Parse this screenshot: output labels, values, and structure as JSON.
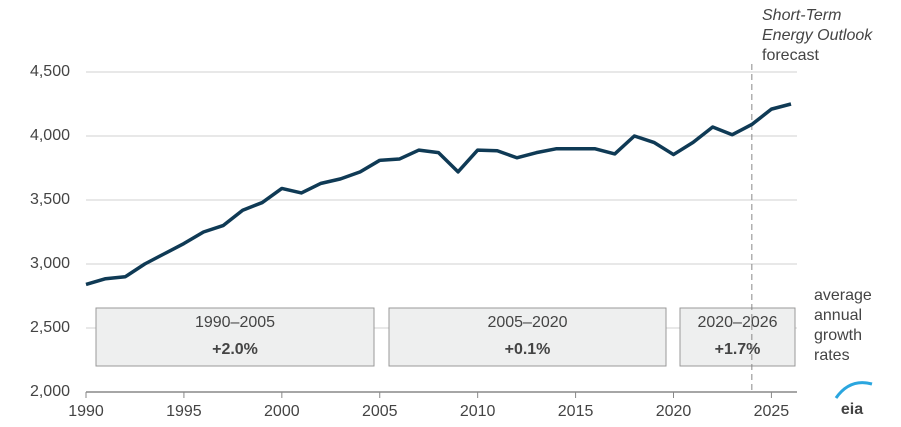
{
  "chart_data": {
    "type": "line",
    "x": [
      1990,
      1991,
      1992,
      1993,
      1994,
      1995,
      1996,
      1997,
      1998,
      1999,
      2000,
      2001,
      2002,
      2003,
      2004,
      2005,
      2006,
      2007,
      2008,
      2009,
      2010,
      2011,
      2012,
      2013,
      2014,
      2015,
      2016,
      2017,
      2018,
      2019,
      2020,
      2021,
      2022,
      2023,
      2024,
      2025,
      2026
    ],
    "series": [
      {
        "name": null,
        "color": "#0f3a55",
        "values": [
          2840,
          2885,
          2900,
          3000,
          3080,
          3160,
          3250,
          3300,
          3420,
          3480,
          3590,
          3555,
          3630,
          3665,
          3720,
          3810,
          3820,
          3890,
          3870,
          3720,
          3890,
          3885,
          3830,
          3870,
          3900,
          3900,
          3900,
          3860,
          4000,
          3950,
          3855,
          3950,
          4070,
          4010,
          4090,
          4210,
          4250
        ]
      }
    ],
    "xlim": [
      1990,
      2026
    ],
    "ylim": [
      2000,
      4500
    ],
    "xticks": [
      1990,
      1995,
      2000,
      2005,
      2010,
      2015,
      2020,
      2025
    ],
    "yticks": [
      {
        "value": 2000,
        "label": "2,000"
      },
      {
        "value": 2500,
        "label": "2,500"
      },
      {
        "value": 3000,
        "label": "3,000"
      },
      {
        "value": 3500,
        "label": "3,500"
      },
      {
        "value": 4000,
        "label": "4,000"
      },
      {
        "value": 4500,
        "label": "4,500"
      }
    ],
    "grid": true,
    "forecast_start": 2024,
    "forecast_label": [
      "Short-Term",
      "Energy Outlook",
      "forecast"
    ],
    "growth_label": [
      "average",
      "annual",
      "growth",
      "rates"
    ],
    "periods": [
      {
        "label": "1990–2005",
        "rate": "+2.0%"
      },
      {
        "label": "2005–2020",
        "rate": "+0.1%"
      },
      {
        "label": "2020–2026",
        "rate": "+1.7%"
      }
    ],
    "logo": "eia"
  }
}
